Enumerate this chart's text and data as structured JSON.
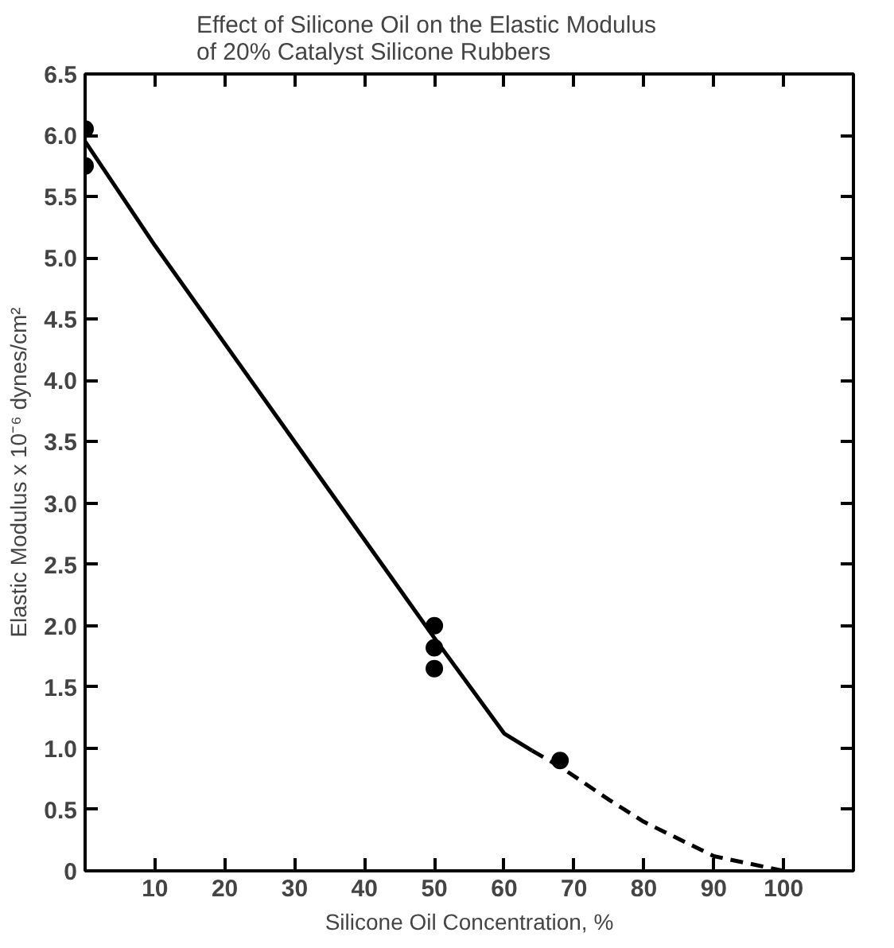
{
  "chart_data": {
    "type": "scatter",
    "title": "Effect of Silicone Oil on the Elastic Modulus\nof 20% Catalyst Silicone Rubbers",
    "xlabel": "Silicone Oil Concentration, %",
    "ylabel": "Elastic Modulus x 10⁻⁶ dynes/cm²",
    "xlim": [
      0,
      110
    ],
    "xticks": [
      10,
      20,
      30,
      40,
      50,
      60,
      70,
      80,
      90,
      100
    ],
    "ylim": [
      0,
      6.5
    ],
    "yticks": [
      0,
      0.5,
      {
        "value": 1,
        "label": "1.0"
      },
      1.5,
      {
        "value": 2,
        "label": "2.0"
      },
      2.5,
      {
        "value": 3,
        "label": "3.0"
      },
      3.5,
      {
        "value": 4,
        "label": "4.0"
      },
      4.5,
      {
        "value": 5,
        "label": "5.0"
      },
      5.5,
      {
        "value": 6,
        "label": "6.0"
      },
      6.5
    ],
    "grid": false,
    "series": [
      {
        "marker": "circle",
        "color": "#000000",
        "x": [
          0,
          0,
          50,
          50,
          50,
          68
        ],
        "values": [
          6.05,
          5.75,
          2.0,
          1.82,
          1.65,
          0.9
        ]
      },
      {
        "type": "line",
        "line_style": "solid",
        "marker": "none",
        "color": "#000000",
        "x": [
          0,
          10,
          20,
          30,
          40,
          50,
          60,
          64
        ],
        "values": [
          5.95,
          5.1,
          4.3,
          3.5,
          2.7,
          1.9,
          1.12,
          0.98
        ]
      },
      {
        "type": "line",
        "line_style": "dashed",
        "marker": "none",
        "color": "#000000",
        "x": [
          64,
          68,
          75,
          80,
          90,
          100
        ],
        "values": [
          0.98,
          0.85,
          0.58,
          0.4,
          0.12,
          0
        ]
      }
    ]
  }
}
